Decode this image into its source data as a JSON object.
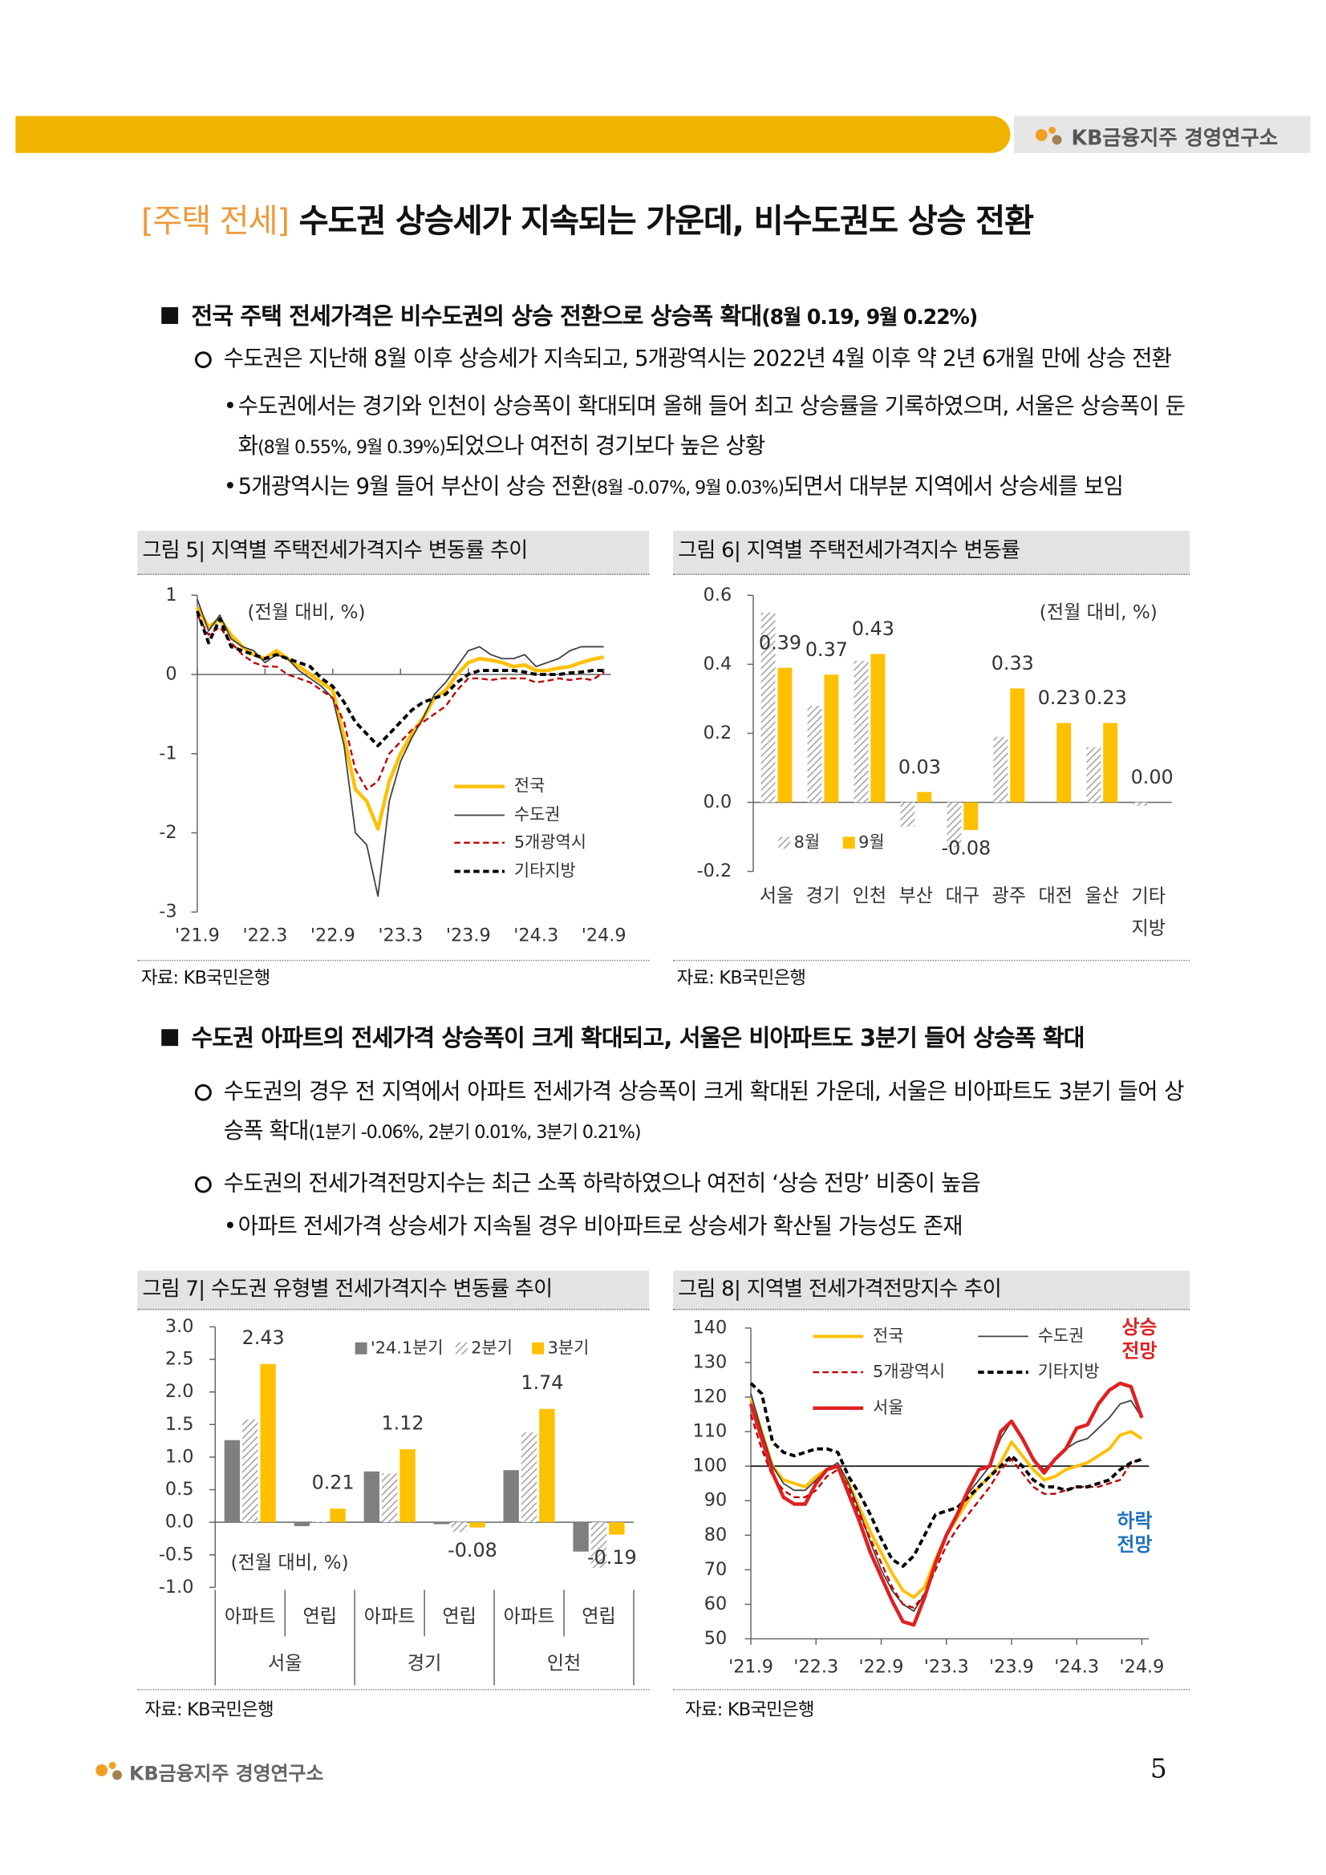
{
  "header": {
    "brand": "KB금융지주 경영연구소"
  },
  "title": {
    "tag": "[주택 전세]",
    "text": "수도권 상승세가 지속되는 가운데, 비수도권도 상승 전환"
  },
  "sections": [
    {
      "heading": {
        "text": "전국 주택 전세가격은 비수도권의 상승 전환으로 상승폭 확대",
        "note": "(8월 0.19, 9월 0.22%)"
      },
      "points": [
        {
          "text": "수도권은 지난해 8월 이후 상승세가 지속되고, 5개광역시는 2022년 4월 이후 약 2년 6개월 만에 상승 전환",
          "subpoints": [
            {
              "before": "수도권에서는 경기와 인천이 상승폭이 확대되며 올해 들어 최고 상승률을 기록하였으며, 서울은 상승폭이 둔화",
              "note": "(8월 0.55%, 9월 0.39%)",
              "after": "되었으나 여전히 경기보다 높은 상황"
            },
            {
              "before": "5개광역시는 9월 들어 부산이 상승 전환",
              "note": "(8월 -0.07%, 9월 0.03%)",
              "after": "되면서 대부분 지역에서 상승세를 보임"
            }
          ]
        }
      ]
    },
    {
      "heading": {
        "text": "수도권 아파트의 전세가격 상승폭이 크게 확대되고, 서울은 비아파트도 3분기 들어 상승폭 확대"
      },
      "points": [
        {
          "before": "수도권의 경우 전 지역에서 아파트 전세가격 상승폭이 크게 확대된 가운데, 서울은 비아파트도 3분기 들어 상승폭 확대",
          "note": "(1분기 -0.06%, 2분기 0.01%, 3분기 0.21%)"
        },
        {
          "text": "수도권의 전세가격전망지수는 최근 소폭 하락하였으나 여전히 ‘상승 전망’ 비중이 높음",
          "subpoints": [
            {
              "text": "아파트 전세가격 상승세가 지속될 경우 비아파트로 상승세가 확산될 가능성도 존재"
            }
          ]
        }
      ]
    }
  ],
  "figures": [
    {
      "caption": "그림 5| 지역별 주택전세가격지수 변동률 추이",
      "source": "자료: KB국민은행"
    },
    {
      "caption": "그림 6| 지역별 주택전세가격지수 변동률",
      "source": "자료: KB국민은행"
    },
    {
      "caption": "그림 7| 수도권 유형별 전세가격지수 변동률 추이",
      "source": "자료: KB국민은행"
    },
    {
      "caption": "그림 8| 지역별 전세가격전망지수 추이",
      "source": "자료: KB국민은행"
    }
  ],
  "chart_data": [
    {
      "type": "line",
      "note": "(전월 대비, %)",
      "categories": [
        "'21.9",
        null,
        null,
        null,
        null,
        null,
        "'22.3",
        null,
        null,
        null,
        null,
        null,
        "'22.9",
        null,
        null,
        null,
        null,
        null,
        "'23.3",
        null,
        null,
        null,
        null,
        null,
        "'23.9",
        null,
        null,
        null,
        null,
        null,
        "'24.3",
        null,
        null,
        null,
        null,
        null,
        "'24.9"
      ],
      "ylim": [
        -3,
        1
      ],
      "yticks": [
        -3,
        -2,
        -1,
        0,
        1
      ],
      "legend": "lower right",
      "series": [
        {
          "name": "전국",
          "color": "#ffc000",
          "line_style": "solid",
          "values": [
            0.85,
            0.6,
            0.7,
            0.5,
            0.35,
            0.25,
            0.2,
            0.3,
            0.2,
            0.1,
            0.0,
            -0.1,
            -0.2,
            -0.8,
            -1.45,
            -1.6,
            -1.95,
            -1.35,
            -1.0,
            -0.75,
            -0.55,
            -0.3,
            -0.2,
            0.0,
            0.15,
            0.2,
            0.18,
            0.15,
            0.1,
            0.12,
            0.05,
            0.05,
            0.08,
            0.1,
            0.15,
            0.19,
            0.22
          ]
        },
        {
          "name": "수도권",
          "color": "#404040",
          "line_style": "solid",
          "values": [
            0.95,
            0.55,
            0.75,
            0.45,
            0.35,
            0.3,
            0.15,
            0.25,
            0.2,
            0.05,
            -0.05,
            -0.15,
            -0.3,
            -0.9,
            -2.0,
            -2.15,
            -2.8,
            -1.6,
            -1.1,
            -0.8,
            -0.55,
            -0.25,
            -0.1,
            0.1,
            0.3,
            0.35,
            0.25,
            0.2,
            0.2,
            0.25,
            0.1,
            0.15,
            0.2,
            0.3,
            0.35,
            0.35,
            0.35
          ]
        },
        {
          "name": "5개광역시",
          "color": "#c00000",
          "line_style": "dashed",
          "values": [
            0.75,
            0.5,
            0.6,
            0.4,
            0.25,
            0.15,
            0.1,
            0.1,
            0.0,
            -0.05,
            -0.1,
            -0.2,
            -0.3,
            -0.6,
            -1.2,
            -1.45,
            -1.35,
            -1.0,
            -0.85,
            -0.7,
            -0.6,
            -0.5,
            -0.4,
            -0.2,
            -0.05,
            -0.05,
            -0.07,
            -0.05,
            -0.05,
            -0.05,
            -0.1,
            -0.08,
            -0.05,
            -0.07,
            -0.05,
            -0.07,
            0.03
          ]
        },
        {
          "name": "기타지방",
          "color": "#000000",
          "line_style": "dashed",
          "values": [
            0.8,
            0.4,
            0.7,
            0.35,
            0.3,
            0.25,
            0.2,
            0.25,
            0.2,
            0.15,
            0.1,
            -0.05,
            -0.15,
            -0.35,
            -0.6,
            -0.75,
            -0.9,
            -0.75,
            -0.6,
            -0.45,
            -0.35,
            -0.3,
            -0.25,
            -0.1,
            0.0,
            0.05,
            0.05,
            0.05,
            0.05,
            0.03,
            0.0,
            0.0,
            0.0,
            0.02,
            0.03,
            0.05,
            0.05
          ]
        }
      ]
    },
    {
      "type": "bar",
      "note": "(전월 대비, %)",
      "categories": [
        "서울",
        "경기",
        "인천",
        "부산",
        "대구",
        "광주",
        "대전",
        "울산",
        "기타 지방"
      ],
      "ylim": [
        -0.2,
        0.6
      ],
      "yticks": [
        -0.2,
        {
          "value": 0,
          "label": "0.0"
        },
        0.2,
        0.4,
        0.6
      ],
      "legend": "lower left",
      "series": [
        {
          "name": "8월",
          "color": "#a6a6a6",
          "hatch": true,
          "values": [
            0.55,
            0.28,
            0.41,
            -0.07,
            -0.13,
            0.19,
            0.0,
            0.16,
            -0.01
          ]
        },
        {
          "name": "9월",
          "color": "#ffc000",
          "values": [
            0.39,
            0.37,
            0.43,
            0.03,
            -0.08,
            0.33,
            0.23,
            0.23,
            0.0
          ],
          "value_labels": [
            "0.39",
            "0.37",
            "0.43",
            "0.03",
            "-0.08",
            "0.33",
            "0.23",
            "0.23",
            "0.00"
          ]
        }
      ]
    },
    {
      "type": "bar",
      "note": "(전월 대비, %)",
      "categories": [
        "아파트",
        "연립",
        "아파트",
        "연립",
        "아파트",
        "연립"
      ],
      "groups": [
        "서울",
        "경기",
        "인천"
      ],
      "ylim": [
        -1,
        3
      ],
      "yticks": [
        {
          "value": -1,
          "label": "-1.0"
        },
        {
          "value": -0.5,
          "label": "-0.5"
        },
        {
          "value": 0,
          "label": "0.0"
        },
        {
          "value": 0.5,
          "label": "0.5"
        },
        {
          "value": 1,
          "label": "1.0"
        },
        {
          "value": 1.5,
          "label": "1.5"
        },
        {
          "value": 2,
          "label": "2.0"
        },
        {
          "value": 2.5,
          "label": "2.5"
        },
        {
          "value": 3,
          "label": "3.0"
        }
      ],
      "legend": "upper",
      "series": [
        {
          "name": "'24.1분기",
          "color": "#7f7f7f",
          "values": [
            1.26,
            -0.06,
            0.78,
            -0.03,
            0.8,
            -0.45
          ]
        },
        {
          "name": "2분기",
          "color": "#a6a6a6",
          "hatch": true,
          "values": [
            1.58,
            0.01,
            0.75,
            -0.15,
            1.38,
            -0.7
          ]
        },
        {
          "name": "3분기",
          "color": "#ffc000",
          "values": [
            2.43,
            0.21,
            1.12,
            -0.08,
            1.74,
            -0.19
          ],
          "value_labels": [
            "2.43",
            "0.21",
            "1.12",
            "-0.08",
            "1.74",
            "-0.19"
          ]
        }
      ]
    },
    {
      "type": "line",
      "categories": [
        "'21.9",
        null,
        null,
        null,
        null,
        null,
        "'22.3",
        null,
        null,
        null,
        null,
        null,
        "'22.9",
        null,
        null,
        null,
        null,
        null,
        "'23.3",
        null,
        null,
        null,
        null,
        null,
        "'23.9",
        null,
        null,
        null,
        null,
        null,
        "'24.3",
        null,
        null,
        null,
        null,
        null,
        "'24.9"
      ],
      "ylim": [
        50,
        140
      ],
      "yticks": [
        50,
        60,
        70,
        80,
        90,
        100,
        110,
        120,
        130,
        140
      ],
      "hline": 100,
      "legend": "upper",
      "annotations": [
        {
          "text": "상승 전망",
          "color": "#e02020"
        },
        {
          "text": "하락 전망",
          "color": "#1f6fbf"
        }
      ],
      "series": [
        {
          "name": "전국",
          "color": "#ffc000",
          "line_style": "solid",
          "values": [
            120,
            110,
            100,
            96,
            95,
            94,
            97,
            99,
            100,
            95,
            88,
            81,
            75,
            69,
            64,
            62,
            65,
            73,
            80,
            85,
            90,
            94,
            97,
            101,
            107,
            103,
            99,
            96,
            97,
            99,
            100,
            101,
            103,
            105,
            109,
            110,
            108
          ]
        },
        {
          "name": "수도권",
          "color": "#404040",
          "line_style": "solid",
          "values": [
            121,
            110,
            100,
            95,
            93,
            93,
            96,
            99,
            101,
            95,
            87,
            78,
            70,
            64,
            60,
            58,
            63,
            72,
            80,
            86,
            92,
            96,
            100,
            108,
            113,
            108,
            102,
            99,
            102,
            105,
            107,
            108,
            111,
            114,
            118,
            119,
            114
          ]
        },
        {
          "name": "5개광역시",
          "color": "#c00000",
          "line_style": "dashed",
          "values": [
            115,
            105,
            97,
            93,
            91,
            91,
            93,
            97,
            99,
            94,
            86,
            79,
            72,
            65,
            60,
            59,
            63,
            70,
            77,
            82,
            86,
            90,
            94,
            99,
            102,
            98,
            94,
            92,
            92,
            93,
            94,
            94,
            94,
            95,
            96,
            101,
            102
          ]
        },
        {
          "name": "기타지방",
          "color": "#000000",
          "line_style": "dashed",
          "values": [
            124,
            121,
            107,
            104,
            103,
            104,
            105,
            105,
            104,
            97,
            92,
            86,
            79,
            73,
            71,
            74,
            80,
            86,
            87,
            88,
            91,
            94,
            97,
            100,
            103,
            100,
            96,
            94,
            94,
            93,
            94,
            94,
            95,
            96,
            99,
            101,
            102
          ]
        },
        {
          "name": "서울",
          "color": "#e02020",
          "line_style": "solid",
          "values": [
            118,
            108,
            98,
            91,
            89,
            89,
            95,
            99,
            100,
            92,
            84,
            75,
            68,
            61,
            55,
            54,
            62,
            72,
            80,
            86,
            93,
            99,
            100,
            110,
            113,
            108,
            102,
            98,
            102,
            105,
            111,
            112,
            118,
            122,
            124,
            123,
            114
          ]
        }
      ]
    }
  ],
  "footer": {
    "brand": "KB금융지주 경영연구소",
    "page": 5
  }
}
